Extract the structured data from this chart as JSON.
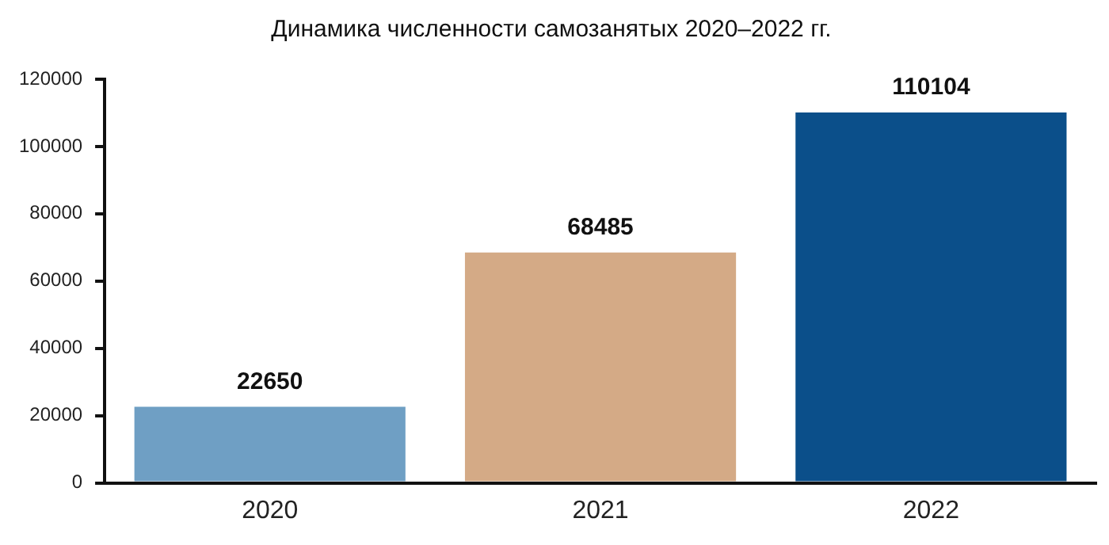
{
  "chart_data": {
    "type": "bar",
    "title": "Динамика численности самозанятых 2020–2022 гг.",
    "categories": [
      "2020",
      "2021",
      "2022"
    ],
    "values": [
      22650,
      68485,
      110104
    ],
    "colors": [
      "#6f9fc4",
      "#d4aa86",
      "#0b4f8a"
    ],
    "ylim": [
      0,
      120000
    ],
    "yticks": [
      0,
      20000,
      40000,
      60000,
      80000,
      100000,
      120000
    ],
    "grid": false,
    "legend": false,
    "data_labels": true
  }
}
